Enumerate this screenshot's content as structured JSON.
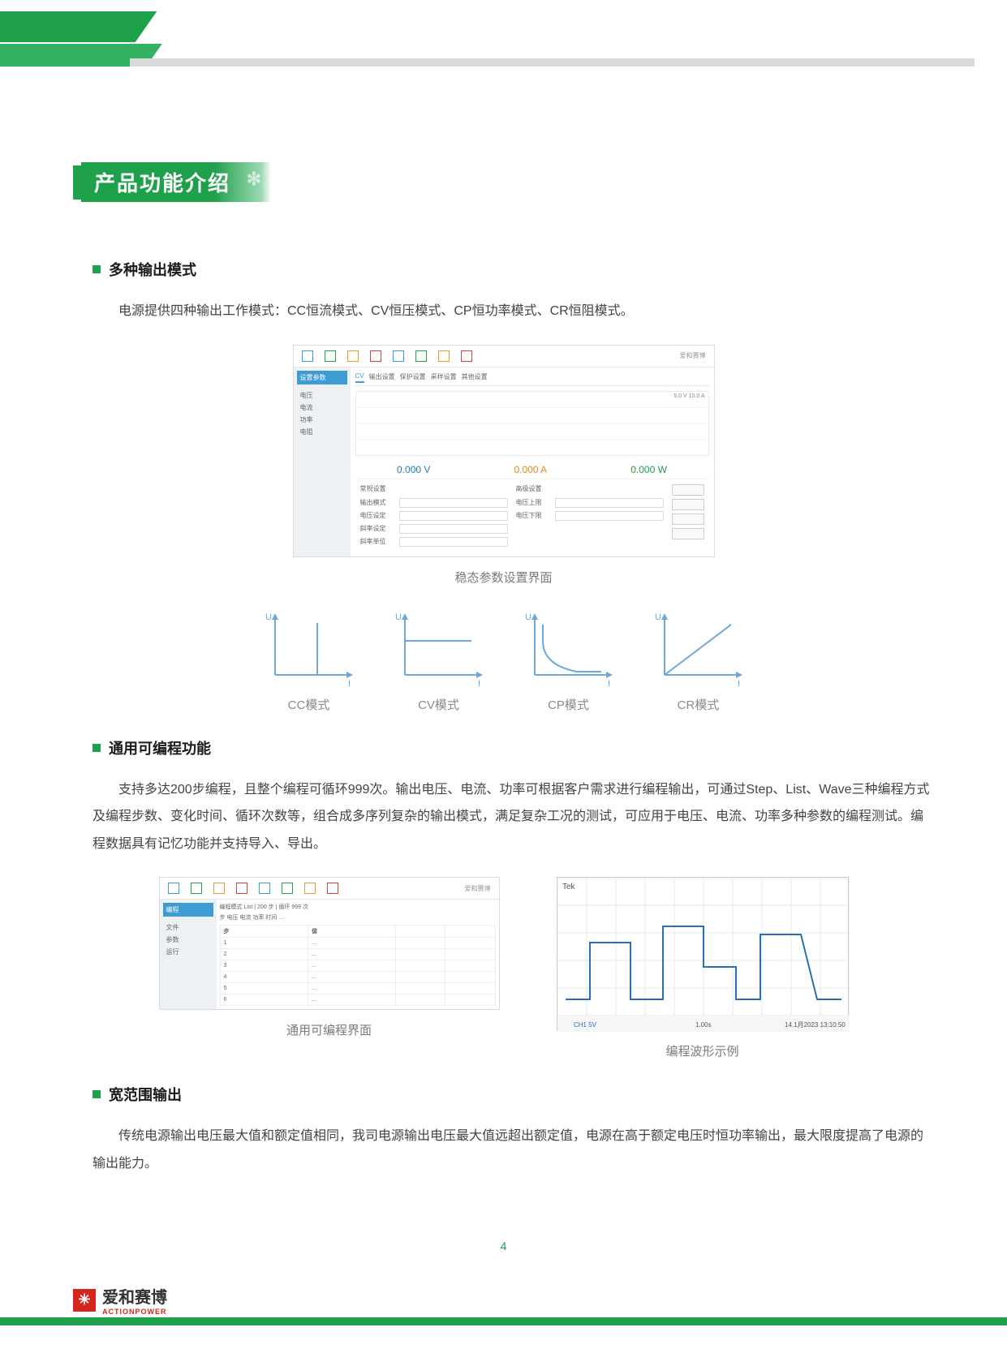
{
  "page": {
    "number": "4",
    "section_banner": "产品功能介绍"
  },
  "accent_color": "#1fa04a",
  "gray": "#7a7a7a",
  "section1": {
    "heading": "多种输出模式",
    "body": "电源提供四种输出工作模式：CC恒流模式、CV恒压模式、CP恒功率模式、CR恒阻模式。",
    "figure_caption": "稳态参数设置界面",
    "ui": {
      "toolbar_icons": [
        {
          "color": "#3e9bd4"
        },
        {
          "color": "#1fa04a"
        },
        {
          "color": "#e89b2e"
        },
        {
          "color": "#c44"
        },
        {
          "color": "#3e9bd4"
        },
        {
          "color": "#1fa04a"
        },
        {
          "color": "#e89b2e"
        },
        {
          "color": "#c44"
        }
      ],
      "brand": "爱和赛博",
      "sidebar_tab": "设置参数",
      "sidebar_rows": [
        "电压",
        "电流",
        "功率",
        "电阻"
      ],
      "tabs": [
        "CV",
        "输出设置",
        "保护设置",
        "采样设置",
        "其他设置"
      ],
      "chart_badge": "5.0 V  10.0 A",
      "values": [
        {
          "num": "0.000",
          "unit": "V",
          "cls": "v-blue"
        },
        {
          "num": "0.000",
          "unit": "A",
          "cls": "v-orange"
        },
        {
          "num": "0.000",
          "unit": "W",
          "cls": "v-green"
        }
      ],
      "param_header_left": "常规设置",
      "param_header_right": "高级设置",
      "params_left": [
        "输出模式",
        "电压设定",
        "斜率设定",
        "斜率单位"
      ],
      "params_right_labels": [
        "电压上限",
        "电压下限"
      ],
      "btn_count": 4
    },
    "modes": {
      "axis_color": "#6fa7d6",
      "label_color": "#8a8a8a",
      "y_label": "U",
      "x_label": "I",
      "items": [
        {
          "label": "CC模式",
          "type": "cc"
        },
        {
          "label": "CV模式",
          "type": "cv"
        },
        {
          "label": "CP模式",
          "type": "cp"
        },
        {
          "label": "CR模式",
          "type": "cr"
        }
      ]
    }
  },
  "section2": {
    "heading": "通用可编程功能",
    "body": "支持多达200步编程，且整个编程可循环999次。输出电压、电流、功率可根据客户需求进行编程输出，可通过Step、List、Wave三种编程方式及编程步数、变化时间、循环次数等，组合成多序列复杂的输出模式，满足复杂工况的测试，可应用于电压、电流、功率多种参数的编程测试。编程数据具有记忆功能并支持导入、导出。",
    "left_caption": "通用可编程界面",
    "right_caption": "编程波形示例",
    "ui2": {
      "sidebar_tab": "编程",
      "sidebar_rows": [
        "文件",
        "参数",
        "运行"
      ],
      "top_rows": [
        "编程模式  List  |  200  步  |  循环  999  次",
        "步  电压  电流  功率  时间  …"
      ],
      "table_headers": [
        "步",
        "值",
        "",
        ""
      ],
      "table_rows": [
        [
          "1",
          "...",
          "",
          ""
        ],
        [
          "2",
          "...",
          "",
          ""
        ],
        [
          "3",
          "...",
          "",
          ""
        ],
        [
          "4",
          "...",
          "",
          ""
        ],
        [
          "5",
          "...",
          "",
          ""
        ],
        [
          "6",
          "...",
          "",
          ""
        ]
      ]
    },
    "scope": {
      "trace_color": "#2a6fb5",
      "grid_color": "#e6e8eb",
      "title": "Tek",
      "footer_left": "CH1  5V",
      "footer_mid": "1.00s",
      "footer_right": "14.1月2023  13:10:50",
      "points": [
        [
          10,
          150
        ],
        [
          40,
          150
        ],
        [
          40,
          80
        ],
        [
          90,
          80
        ],
        [
          90,
          150
        ],
        [
          130,
          150
        ],
        [
          130,
          60
        ],
        [
          180,
          60
        ],
        [
          180,
          110
        ],
        [
          220,
          110
        ],
        [
          220,
          150
        ],
        [
          250,
          150
        ],
        [
          250,
          70
        ],
        [
          300,
          70
        ],
        [
          320,
          150
        ],
        [
          350,
          150
        ]
      ]
    }
  },
  "section3": {
    "heading": "宽范围输出",
    "body": "传统电源输出电压最大值和额定值相同，我司电源输出电压最大值远超出额定值，电源在高于额定电压时恒功率输出，最大限度提高了电源的输出能力。"
  },
  "footer": {
    "logo_text": "爱和赛博",
    "logo_sub": "ACTIONPOWER"
  }
}
